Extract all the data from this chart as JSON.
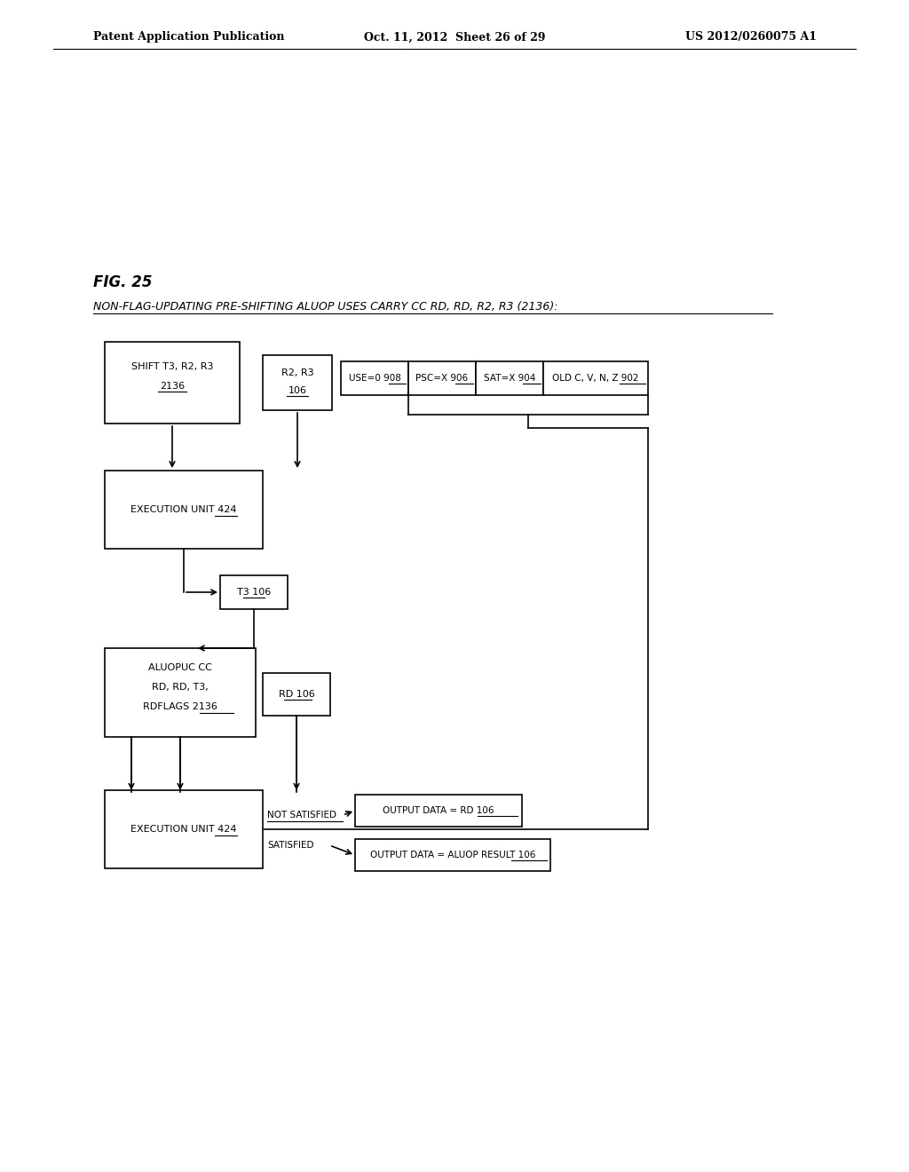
{
  "bg_color": "#ffffff",
  "page_header_left": "Patent Application Publication",
  "page_header_mid": "Oct. 11, 2012  Sheet 26 of 29",
  "page_header_right": "US 2012/0260075 A1",
  "fig_label": "FIG. 25",
  "subtitle": "NON-FLAG-UPDATING PRE-SHIFTING ALUOP USES CARRY CC RD, RD, R2, R3 (2136):",
  "shift_lines": [
    "SHIFT T3, R2, R3",
    "2136"
  ],
  "r2r3_lines": [
    "R2, R3",
    "106"
  ],
  "exec1_lines": [
    "EXECUTION UNIT 424"
  ],
  "t3_lines": [
    "T3 106"
  ],
  "aluop_lines": [
    "ALUOPUC CC",
    "RD, RD, T3,",
    "RDFLAGS 2136"
  ],
  "rd_lines": [
    "RD 106"
  ],
  "exec2_lines": [
    "EXECUTION UNIT 424"
  ],
  "use0_text": "USE=0 908",
  "pscx_text": "PSC=X 906",
  "satx_text": "SAT=X 904",
  "oldc_text": "OLD C, V, N, Z 902",
  "outrd_text": "OUTPUT DATA = RD 106",
  "outaluop_text": "OUTPUT DATA = ALUOP RESULT 106",
  "not_satisfied": "NOT SATISFIED",
  "satisfied": "SATISFIED",
  "lw": 1.2
}
